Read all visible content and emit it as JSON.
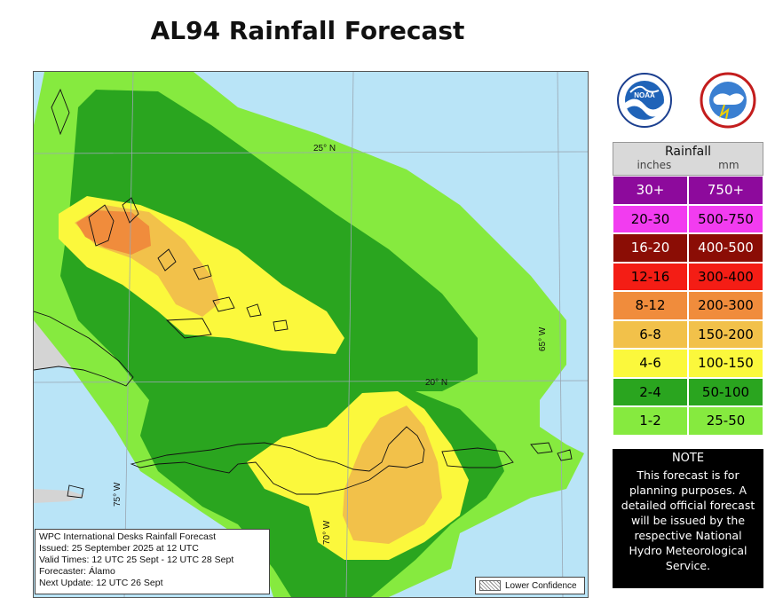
{
  "title": "AL94 Rainfall Forecast",
  "map": {
    "grid_labels": {
      "lat_25": "25° N",
      "lat_20": "20° N",
      "lon_75": "75° W",
      "lon_70": "70° W",
      "lon_65": "65° W"
    },
    "colors": {
      "ocean": "#b9e4f7",
      "land_gray": "#d4d4d4",
      "light_green": "#86ea3f",
      "dark_green": "#2aa51f",
      "yellow": "#fbf83c",
      "light_orange": "#f2c14a",
      "orange": "#f08c3c"
    }
  },
  "info_box": {
    "line1": "WPC International Desks Rainfall Forecast",
    "line2": "Issued: 25 September 2025 at 12 UTC",
    "line3": "Valid Times: 12 UTC 25 Sept - 12 UTC 28 Sept",
    "line4": "Forecaster: Álamo",
    "line5": "Next Update: 12 UTC 26 Sept"
  },
  "lower_confidence_label": "Lower Confidence",
  "logos": {
    "noaa_text": "NOAA",
    "nws_text": "NATIONAL WEATHER SERVICE"
  },
  "legend": {
    "title": "Rainfall",
    "unit_in": "inches",
    "unit_mm": "mm",
    "rows": [
      {
        "inches": "30+",
        "mm": "750+",
        "color": "#8d0a9c",
        "text": "#ffffff"
      },
      {
        "inches": "20-30",
        "mm": "500-750",
        "color": "#f23cf0",
        "text": "#000000"
      },
      {
        "inches": "16-20",
        "mm": "400-500",
        "color": "#8b0d05",
        "text": "#ffffff"
      },
      {
        "inches": "12-16",
        "mm": "300-400",
        "color": "#f41d15",
        "text": "#000000"
      },
      {
        "inches": "8-12",
        "mm": "200-300",
        "color": "#f08c3c",
        "text": "#000000"
      },
      {
        "inches": "6-8",
        "mm": "150-200",
        "color": "#f2c14a",
        "text": "#000000"
      },
      {
        "inches": "4-6",
        "mm": "100-150",
        "color": "#fbf83c",
        "text": "#000000"
      },
      {
        "inches": "2-4",
        "mm": "50-100",
        "color": "#2aa51f",
        "text": "#000000"
      },
      {
        "inches": "1-2",
        "mm": "25-50",
        "color": "#86ea3f",
        "text": "#000000"
      }
    ]
  },
  "note": {
    "heading": "NOTE",
    "body": "This forecast is for planning purposes. A detailed official forecast will be issued by the respective National Hydro Meteorological Service."
  }
}
